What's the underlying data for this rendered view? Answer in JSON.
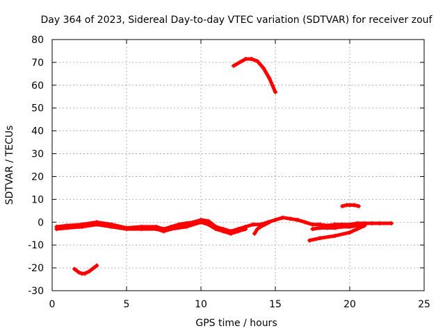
{
  "chart_data": {
    "type": "scatter",
    "title": "Day 364 of 2023, Sidereal Day-to-day VTEC variation (SDTVAR) for receiver zouf",
    "xlabel": "GPS time / hours",
    "ylabel": "SDTVAR / TECUs",
    "xlim": [
      0,
      25
    ],
    "ylim": [
      -30,
      80
    ],
    "xticks": [
      0,
      5,
      10,
      15,
      20,
      25
    ],
    "yticks": [
      -30,
      -20,
      -10,
      0,
      10,
      20,
      30,
      40,
      50,
      60,
      70,
      80
    ],
    "grid": true,
    "marker": "+",
    "color": "#ff0000",
    "series": [
      {
        "name": "main-band",
        "x": [
          0.3,
          1,
          2,
          3,
          4,
          5,
          6,
          7,
          7.5,
          8,
          8.5,
          9,
          9.5,
          10,
          10.5,
          11,
          11.5,
          12,
          12.5,
          13,
          13.5,
          14,
          14.5,
          15,
          15.5,
          16,
          16.5,
          17,
          17.5,
          18,
          18.5,
          19,
          19.5,
          20,
          20.5,
          21,
          21.5,
          22,
          22.8
        ],
        "y": [
          -2,
          -1.5,
          -1,
          0,
          -1,
          -2.5,
          -2,
          -2,
          -3,
          -2,
          -1,
          -0.5,
          0,
          1,
          0.5,
          -2,
          -3,
          -4,
          -3,
          -2,
          -1,
          -1,
          0,
          1,
          2,
          1.5,
          1,
          0,
          -1,
          -1,
          -1.5,
          -1,
          -1,
          -1,
          -0.5,
          -0.5,
          -0.5,
          -0.5,
          -0.5
        ]
      },
      {
        "name": "lower-band",
        "x": [
          0.3,
          1,
          2,
          3,
          4,
          5,
          6,
          7,
          7.5,
          8,
          9,
          10,
          10.5,
          11,
          11.5,
          12,
          12.5,
          13
        ],
        "y": [
          -3,
          -2.5,
          -2,
          -1,
          -2,
          -3,
          -3,
          -3,
          -4,
          -3,
          -2,
          0,
          -1,
          -3,
          -4,
          -5,
          -4,
          -3
        ]
      },
      {
        "name": "dip-segment",
        "x": [
          13.6,
          13.8,
          14,
          14.3,
          14.6
        ],
        "y": [
          -5,
          -3,
          -2,
          -1,
          0
        ]
      },
      {
        "name": "lower-arc",
        "x": [
          1.5,
          1.8,
          2,
          2.2,
          2.5,
          2.8,
          3
        ],
        "y": [
          -20.5,
          -22,
          -22.5,
          -22.5,
          -21.5,
          -20,
          -19
        ]
      },
      {
        "name": "upper-arc",
        "x": [
          12.2,
          12.6,
          13,
          13.4,
          13.8,
          14.2,
          14.6,
          14.8,
          15
        ],
        "y": [
          68.5,
          70,
          71.5,
          71.5,
          70.5,
          67.5,
          63,
          60,
          57
        ]
      },
      {
        "name": "late-rising",
        "x": [
          17.3,
          18,
          19,
          20,
          20.5,
          21
        ],
        "y": [
          -8,
          -7,
          -6,
          -4.5,
          -3,
          -1.5
        ]
      },
      {
        "name": "late-dense",
        "x": [
          17.5,
          18,
          18.5,
          19,
          19.5,
          20,
          20.5,
          21
        ],
        "y": [
          -3,
          -2.5,
          -2.5,
          -2.5,
          -2,
          -2,
          -1.5,
          -1
        ]
      },
      {
        "name": "short-high",
        "x": [
          19.5,
          19.8,
          20,
          20.3,
          20.6
        ],
        "y": [
          7,
          7.5,
          7.5,
          7.5,
          7
        ]
      }
    ]
  }
}
